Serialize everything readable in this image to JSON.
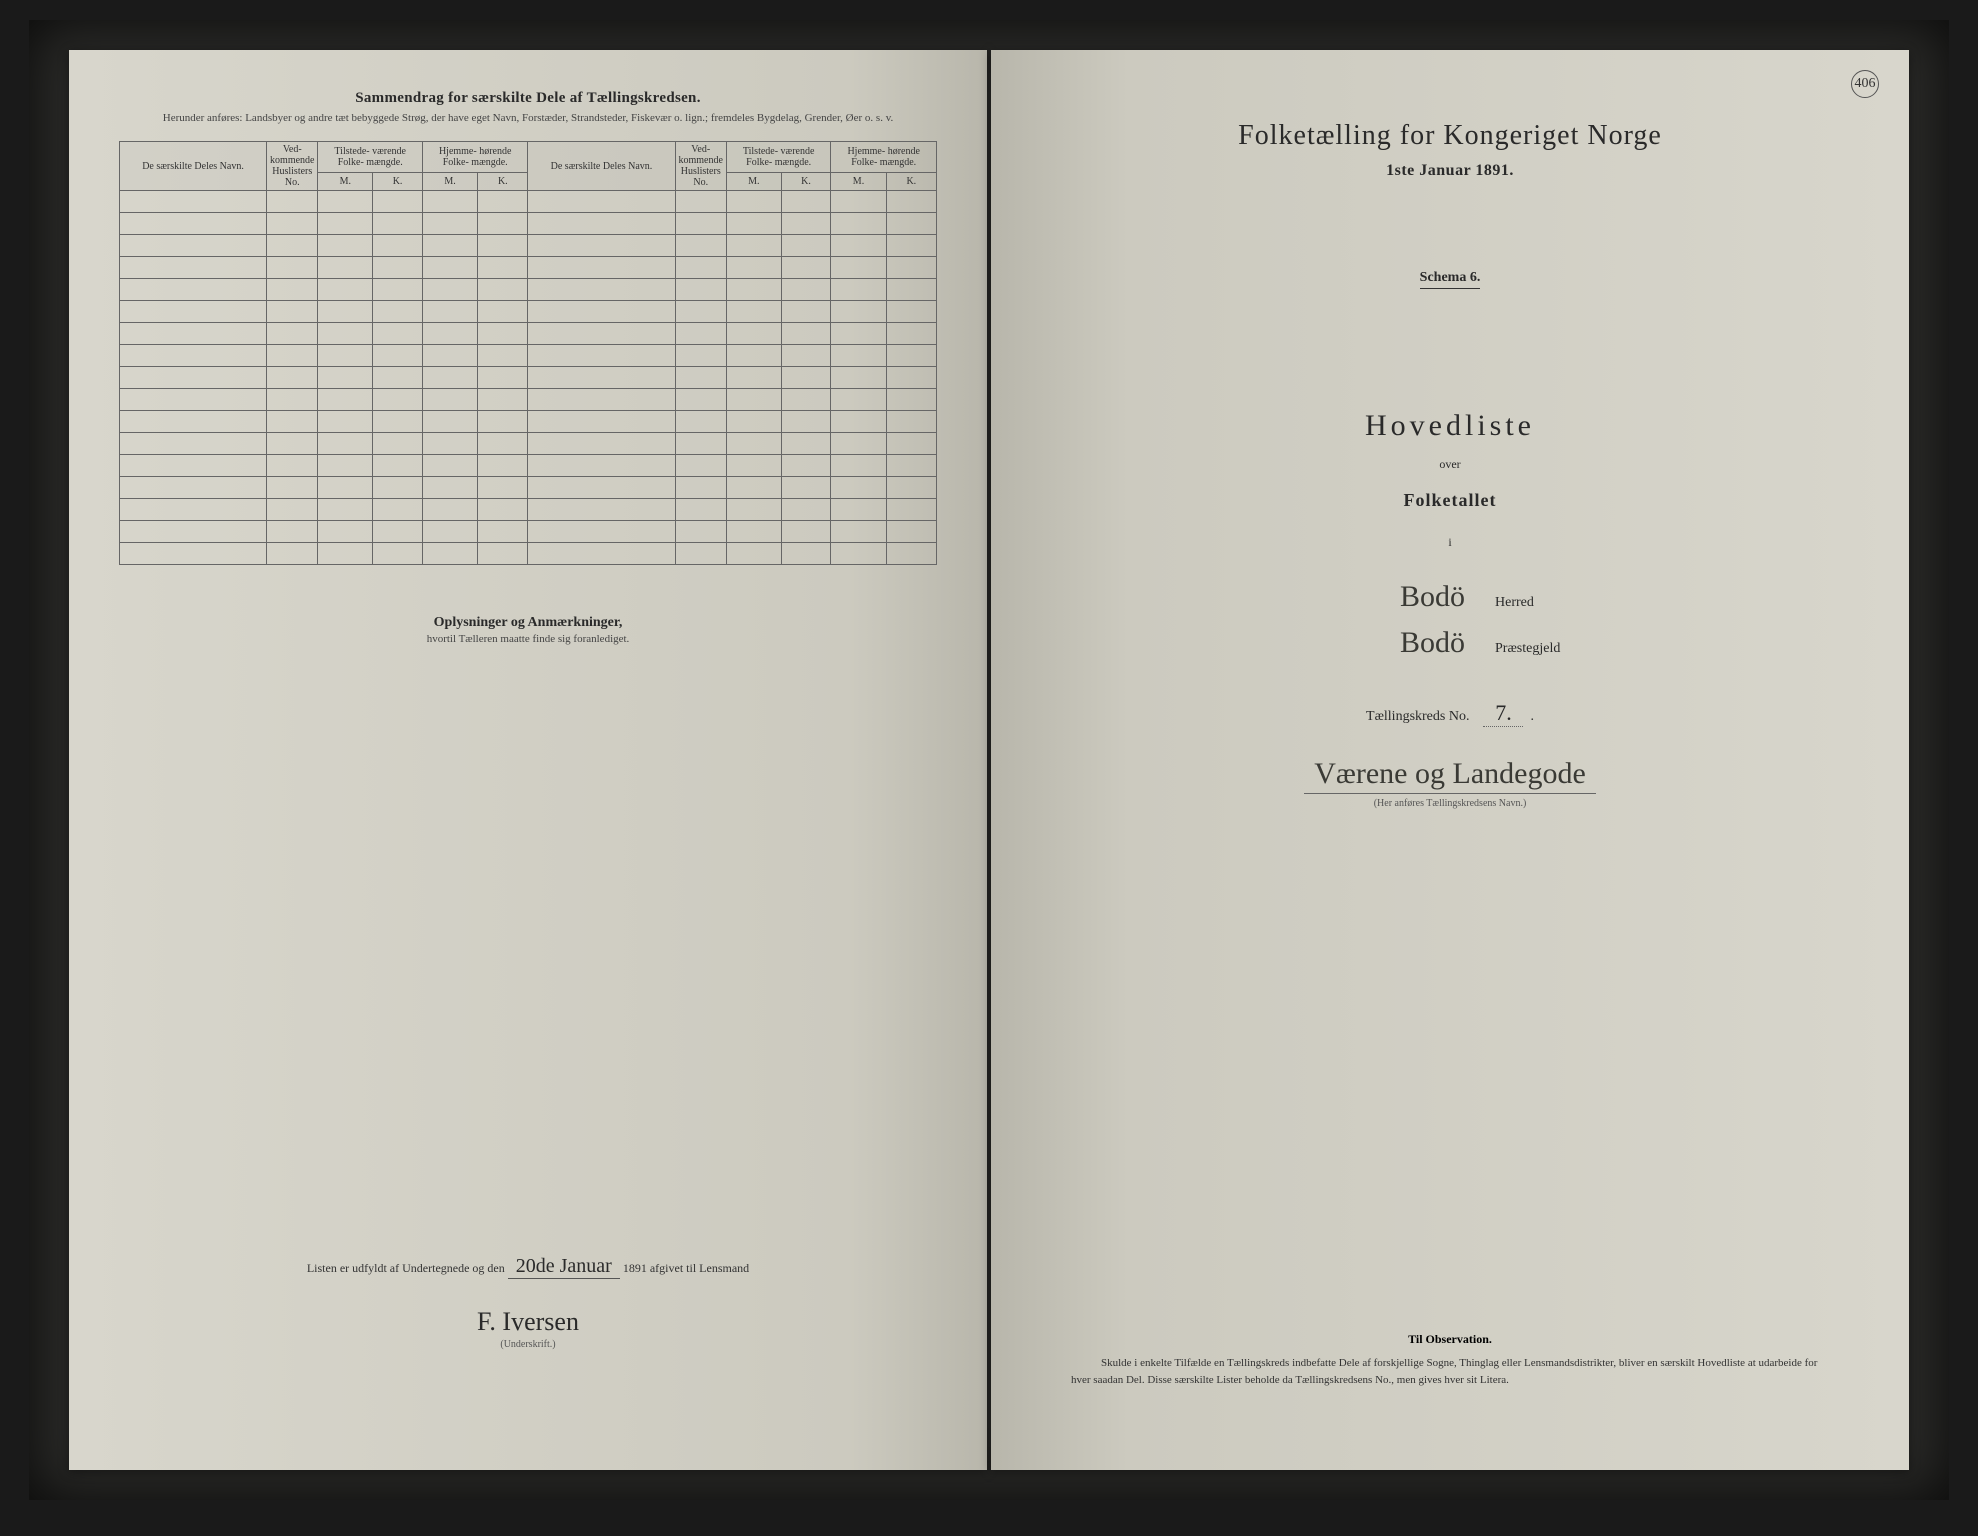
{
  "colors": {
    "paper": "#d4d2c7",
    "ink": "#2a2a2a",
    "rule": "#555555",
    "background": "#1a1a1a"
  },
  "leftPage": {
    "header": {
      "title": "Sammendrag for særskilte Dele af Tællingskredsen.",
      "subtitle": "Herunder anføres: Landsbyer og andre tæt bebyggede Strøg, der have eget Navn, Forstæder, Strandsteder, Fiskevær o. lign.; fremdeles Bygdelag, Grender, Øer o. s. v."
    },
    "table": {
      "columns": [
        "De særskilte Deles Navn.",
        "Ved-\nkommende\nHuslisters\nNo.",
        "Tilstede-\nværende\nFolke-\nmængde.",
        "Hjemme-\nhørende\nFolke-\nmængde.",
        "De særskilte Deles Navn.",
        "Ved-\nkommende\nHuslisters\nNo.",
        "Tilstede-\nværende\nFolke-\nmængde.",
        "Hjemme-\nhørende\nFolke-\nmængde."
      ],
      "subM": "M.",
      "subK": "K.",
      "emptyRows": 17
    },
    "oplysninger": {
      "title": "Oplysninger og Anmærkninger,",
      "sub": "hvortil Tælleren maatte finde sig foranlediget."
    },
    "signature": {
      "prefix": "Listen er udfyldt af Undertegnede og den",
      "date": "20de Januar",
      "year": "1891 afgivet til Lensmand",
      "name": "F. Iversen",
      "caption": "(Underskrift.)"
    }
  },
  "rightPage": {
    "pageNumber": "406",
    "title": "Folketælling for Kongeriget Norge",
    "date": "1ste Januar 1891.",
    "schema": "Schema 6.",
    "hovedliste": "Hovedliste",
    "over": "over",
    "folketallet": "Folketallet",
    "i": "i",
    "herred": {
      "value": "Bodö",
      "label": "Herred"
    },
    "praestegjeld": {
      "value": "Bodö",
      "label": "Præstegjeld"
    },
    "kreds": {
      "label": "Tællingskreds No.",
      "no": "7."
    },
    "kredsName": "Værene og Landegode",
    "kredsCaption": "(Her anføres Tællingskredsens Navn.)",
    "observation": {
      "title": "Til Observation.",
      "text": "Skulde i enkelte Tilfælde en Tællingskreds indbefatte Dele af forskjellige Sogne, Thinglag eller Lensmandsdistrikter, bliver en særskilt Hovedliste at udarbeide for hver saadan Del. Disse særskilte Lister beholde da Tællingskredsens No., men gives hver sit Litera."
    }
  }
}
